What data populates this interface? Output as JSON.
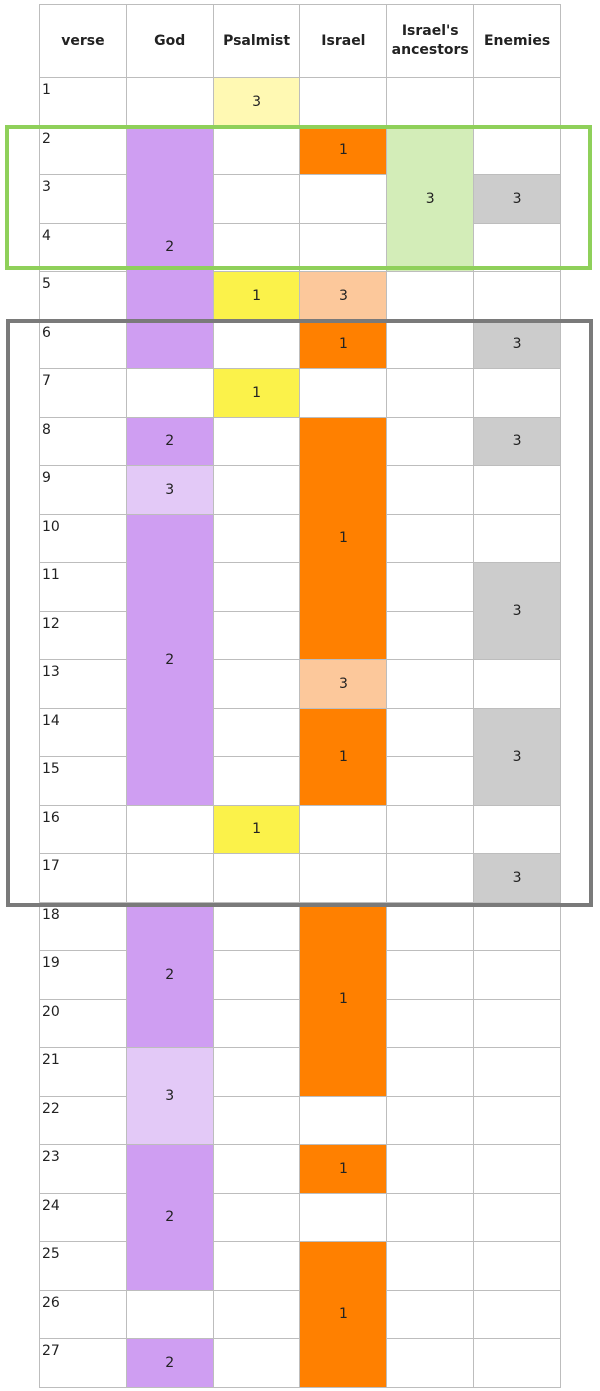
{
  "header": [
    "verse",
    "God",
    "Psalmist",
    "Israel",
    "Israel's ancestors",
    "Enemies"
  ],
  "rows": [
    {
      "verse": "1",
      "cells": [
        {},
        {
          "text": "3",
          "color": "#fff9b3"
        },
        {},
        {},
        {}
      ]
    },
    {
      "verse": "2",
      "cells": [
        {
          "text": "2",
          "color": "#cf9ef2",
          "span": 5
        },
        {},
        {
          "text": "1",
          "color": "#ff8000"
        },
        {
          "text": "3",
          "color": "#d3edb8",
          "span": 3
        },
        {}
      ]
    },
    {
      "verse": "3",
      "cells": [
        {},
        {},
        {
          "text": "3",
          "color": "#cccccc"
        }
      ]
    },
    {
      "verse": "4",
      "cells": [
        {},
        {},
        {}
      ]
    },
    {
      "verse": "5",
      "cells": [
        {
          "text": "1",
          "color": "#fbf24a"
        },
        {
          "text": "3",
          "color": "#fcc89b"
        },
        {},
        {}
      ]
    },
    {
      "verse": "6",
      "cells": [
        {},
        {
          "text": "1",
          "color": "#ff8000"
        },
        {},
        {
          "text": "3",
          "color": "#cccccc"
        }
      ]
    },
    {
      "verse": "7",
      "cells": [
        {},
        {
          "text": "1",
          "color": "#fbf24a"
        },
        {},
        {},
        {}
      ]
    },
    {
      "verse": "8",
      "cells": [
        {
          "text": "2",
          "color": "#cf9ef2"
        },
        {},
        {
          "text": "1",
          "color": "#ff8000",
          "span": 5
        },
        {},
        {
          "text": "3",
          "color": "#cccccc"
        }
      ]
    },
    {
      "verse": "9",
      "cells": [
        {
          "text": "3",
          "color": "#e3c9f7"
        },
        {},
        {},
        {}
      ]
    },
    {
      "verse": "10",
      "cells": [
        {
          "text": "2",
          "color": "#cf9ef2",
          "span": 6
        },
        {},
        {},
        {}
      ]
    },
    {
      "verse": "11",
      "cells": [
        {},
        {},
        {
          "text": "3",
          "color": "#cccccc",
          "span": 2
        }
      ]
    },
    {
      "verse": "12",
      "cells": [
        {},
        {}
      ]
    },
    {
      "verse": "13",
      "cells": [
        {},
        {
          "text": "3",
          "color": "#fcc89b"
        },
        {},
        {}
      ]
    },
    {
      "verse": "14",
      "cells": [
        {},
        {
          "text": "1",
          "color": "#ff8000",
          "span": 2
        },
        {},
        {
          "text": "3",
          "color": "#cccccc",
          "span": 2
        }
      ]
    },
    {
      "verse": "15",
      "cells": [
        {},
        {}
      ]
    },
    {
      "verse": "16",
      "cells": [
        {},
        {
          "text": "1",
          "color": "#fbf24a"
        },
        {},
        {},
        {}
      ]
    },
    {
      "verse": "17",
      "cells": [
        {},
        {},
        {},
        {},
        {
          "text": "3",
          "color": "#cccccc"
        }
      ]
    },
    {
      "verse": "18",
      "cells": [
        {
          "text": "2",
          "color": "#cf9ef2",
          "span": 3
        },
        {},
        {
          "text": "1",
          "color": "#ff8000",
          "span": 4
        },
        {},
        {}
      ]
    },
    {
      "verse": "19",
      "cells": [
        {},
        {},
        {}
      ]
    },
    {
      "verse": "20",
      "cells": [
        {},
        {},
        {}
      ]
    },
    {
      "verse": "21",
      "cells": [
        {
          "text": "3",
          "color": "#e3c9f7",
          "span": 2
        },
        {},
        {},
        {}
      ]
    },
    {
      "verse": "22",
      "cells": [
        {},
        {},
        {},
        {}
      ]
    },
    {
      "verse": "23",
      "cells": [
        {
          "text": "2",
          "color": "#cf9ef2",
          "span": 3
        },
        {},
        {
          "text": "1",
          "color": "#ff8000"
        },
        {},
        {}
      ]
    },
    {
      "verse": "24",
      "cells": [
        {},
        {},
        {},
        {}
      ]
    },
    {
      "verse": "25",
      "cells": [
        {},
        {
          "text": "1",
          "color": "#ff8000",
          "span": 3
        },
        {},
        {}
      ]
    },
    {
      "verse": "26",
      "cells": [
        {},
        {},
        {},
        {}
      ]
    },
    {
      "verse": "27",
      "cells": [
        {
          "text": "2",
          "color": "#cf9ef2"
        },
        {},
        {},
        {}
      ]
    }
  ]
}
